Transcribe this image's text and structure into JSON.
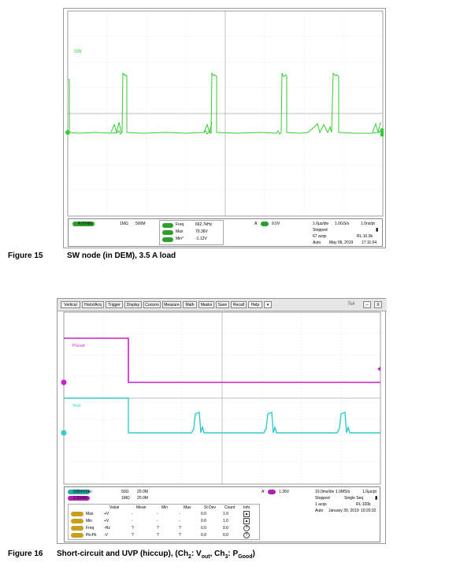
{
  "fig15": {
    "trace_label": "SW",
    "ch_scale": "4.0V/div",
    "ch_imp": "1MΩ",
    "ch_bw": "500M",
    "m1_name": "Freq",
    "m1_val": "662.7kHz",
    "m2_name": "Max",
    "m2_val": "70.36V",
    "m3_name": "Min*",
    "m3_val": "-1.12V",
    "trig_label": "A'",
    "trig_val": "9.0V",
    "timebase": "1.0μs/div",
    "samplerate": "1.0GS/s",
    "pt": "1.0ns/pt",
    "status": "Stopped",
    "acqs": "67 acqs",
    "rl": "RL:10.0k",
    "mode": "Auto",
    "date": "May 06, 2019",
    "time": "17:11:04",
    "caption_num": "Figure 15",
    "caption_text": "SW node (in DEM), 3.5 A load"
  },
  "fig16": {
    "menu": [
      "Vertical",
      "Horiz/Acq",
      "Trigger",
      "Display",
      "Cursors",
      "Measure",
      "Math",
      "Masks",
      "Save",
      "Recall",
      "Help"
    ],
    "brand": "Tek",
    "pgood_label": "PGood",
    "vout_label": "Vout",
    "ch2_scale": "500mV/div",
    "ch2_imp": "50Ω",
    "ch2_bw": "20.0M",
    "ch3_scale": "2.0V/div",
    "ch3_imp": "1MΩ",
    "ch3_bw": "20.0M",
    "trig_label": "A'",
    "trig_val": "1.36V",
    "timebase": "10.0ms/div",
    "samplerate": "1.0MS/s",
    "pt": "1.0μs/pt",
    "status": "Stopped",
    "seq": "Single Seq",
    "acqs": "1 acqs",
    "rl": "RL:100k",
    "mode": "Auto",
    "date": "January 30, 2019",
    "time": "10:20:32",
    "table_headers": [
      "Value",
      "Mean",
      "Min",
      "Max",
      "St Dev",
      "Count",
      "Info"
    ],
    "rows": [
      {
        "name": "Max",
        "value": "+V",
        "mean": "-",
        "min": "-",
        "max": "-",
        "stdev": "0.0",
        "count": "1.0"
      },
      {
        "name": "Min",
        "value": "+V",
        "mean": "-",
        "min": "-",
        "max": "-",
        "stdev": "0.0",
        "count": "1.0"
      },
      {
        "name": "Freq",
        "value": "-Hz",
        "mean": "?",
        "min": "?",
        "max": "?",
        "stdev": "0.0",
        "count": "0.0"
      },
      {
        "name": "Pk-Pk",
        "value": "-V",
        "mean": "?",
        "min": "?",
        "max": "?",
        "stdev": "0.0",
        "count": "0.0"
      }
    ],
    "caption_num": "Figure 16",
    "caption_text": "Short-circuit and UVP (hiccup), (Ch",
    "cap_sub1": "2",
    "cap_mid1": ": V",
    "cap_sub2": "out",
    "cap_mid2": ", Ch",
    "cap_sub3": "3",
    "cap_mid3": ": P",
    "cap_sub4": "Good",
    "cap_end": ")"
  },
  "colors": {
    "green": "#33cc33",
    "magenta": "#cc22cc",
    "cyan": "#33cccc",
    "grid": "#b0b0b0"
  }
}
